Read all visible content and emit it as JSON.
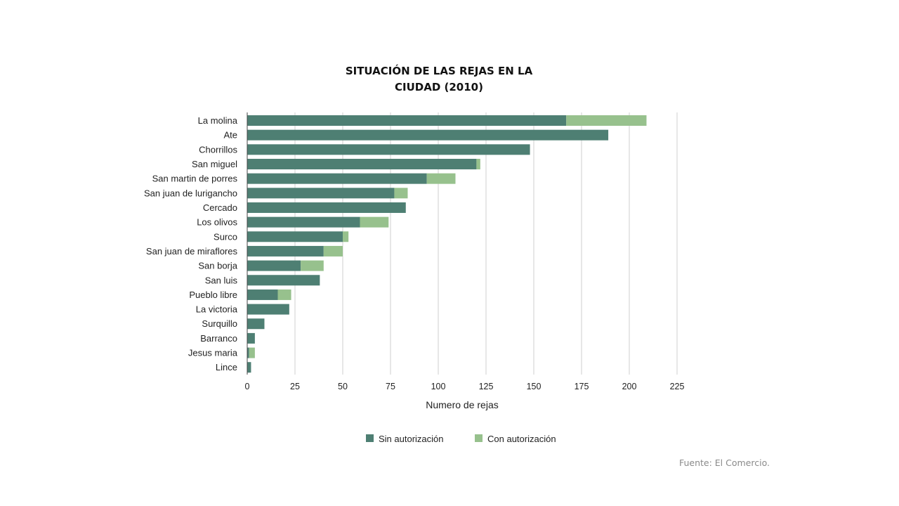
{
  "chart_data": {
    "type": "bar",
    "orientation": "horizontal",
    "stacked": true,
    "title": [
      "SITUACIÓN DE LAS REJAS EN LA",
      "CIUDAD (2010)"
    ],
    "xlabel": "Numero de rejas",
    "ylabel": "",
    "xlim": [
      0,
      225
    ],
    "xticks": [
      0,
      25,
      50,
      75,
      100,
      125,
      150,
      175,
      200,
      225
    ],
    "grid": true,
    "legend_position": "bottom-center",
    "categories": [
      "La molina",
      "Ate",
      "Chorrillos",
      "San miguel",
      "San martin de porres",
      "San juan de lurigancho",
      "Cercado",
      "Los olivos",
      "Surco",
      "San juan de miraflores",
      "San borja",
      "San luis",
      "Pueblo libre",
      "La victoria",
      "Surquillo",
      "Barranco",
      "Jesus maria",
      "Lince"
    ],
    "series": [
      {
        "name": "Sin autorización",
        "color": "#4e7f73",
        "values": [
          167,
          189,
          148,
          120,
          94,
          77,
          83,
          59,
          50,
          40,
          28,
          38,
          16,
          22,
          9,
          4,
          1,
          2
        ]
      },
      {
        "name": "Con autorización",
        "color": "#97c18d",
        "values": [
          42,
          0,
          0,
          2,
          15,
          7,
          0,
          15,
          3,
          10,
          12,
          0,
          7,
          0,
          0,
          0,
          3,
          0
        ]
      }
    ]
  },
  "source": "Fuente: El Comercio."
}
